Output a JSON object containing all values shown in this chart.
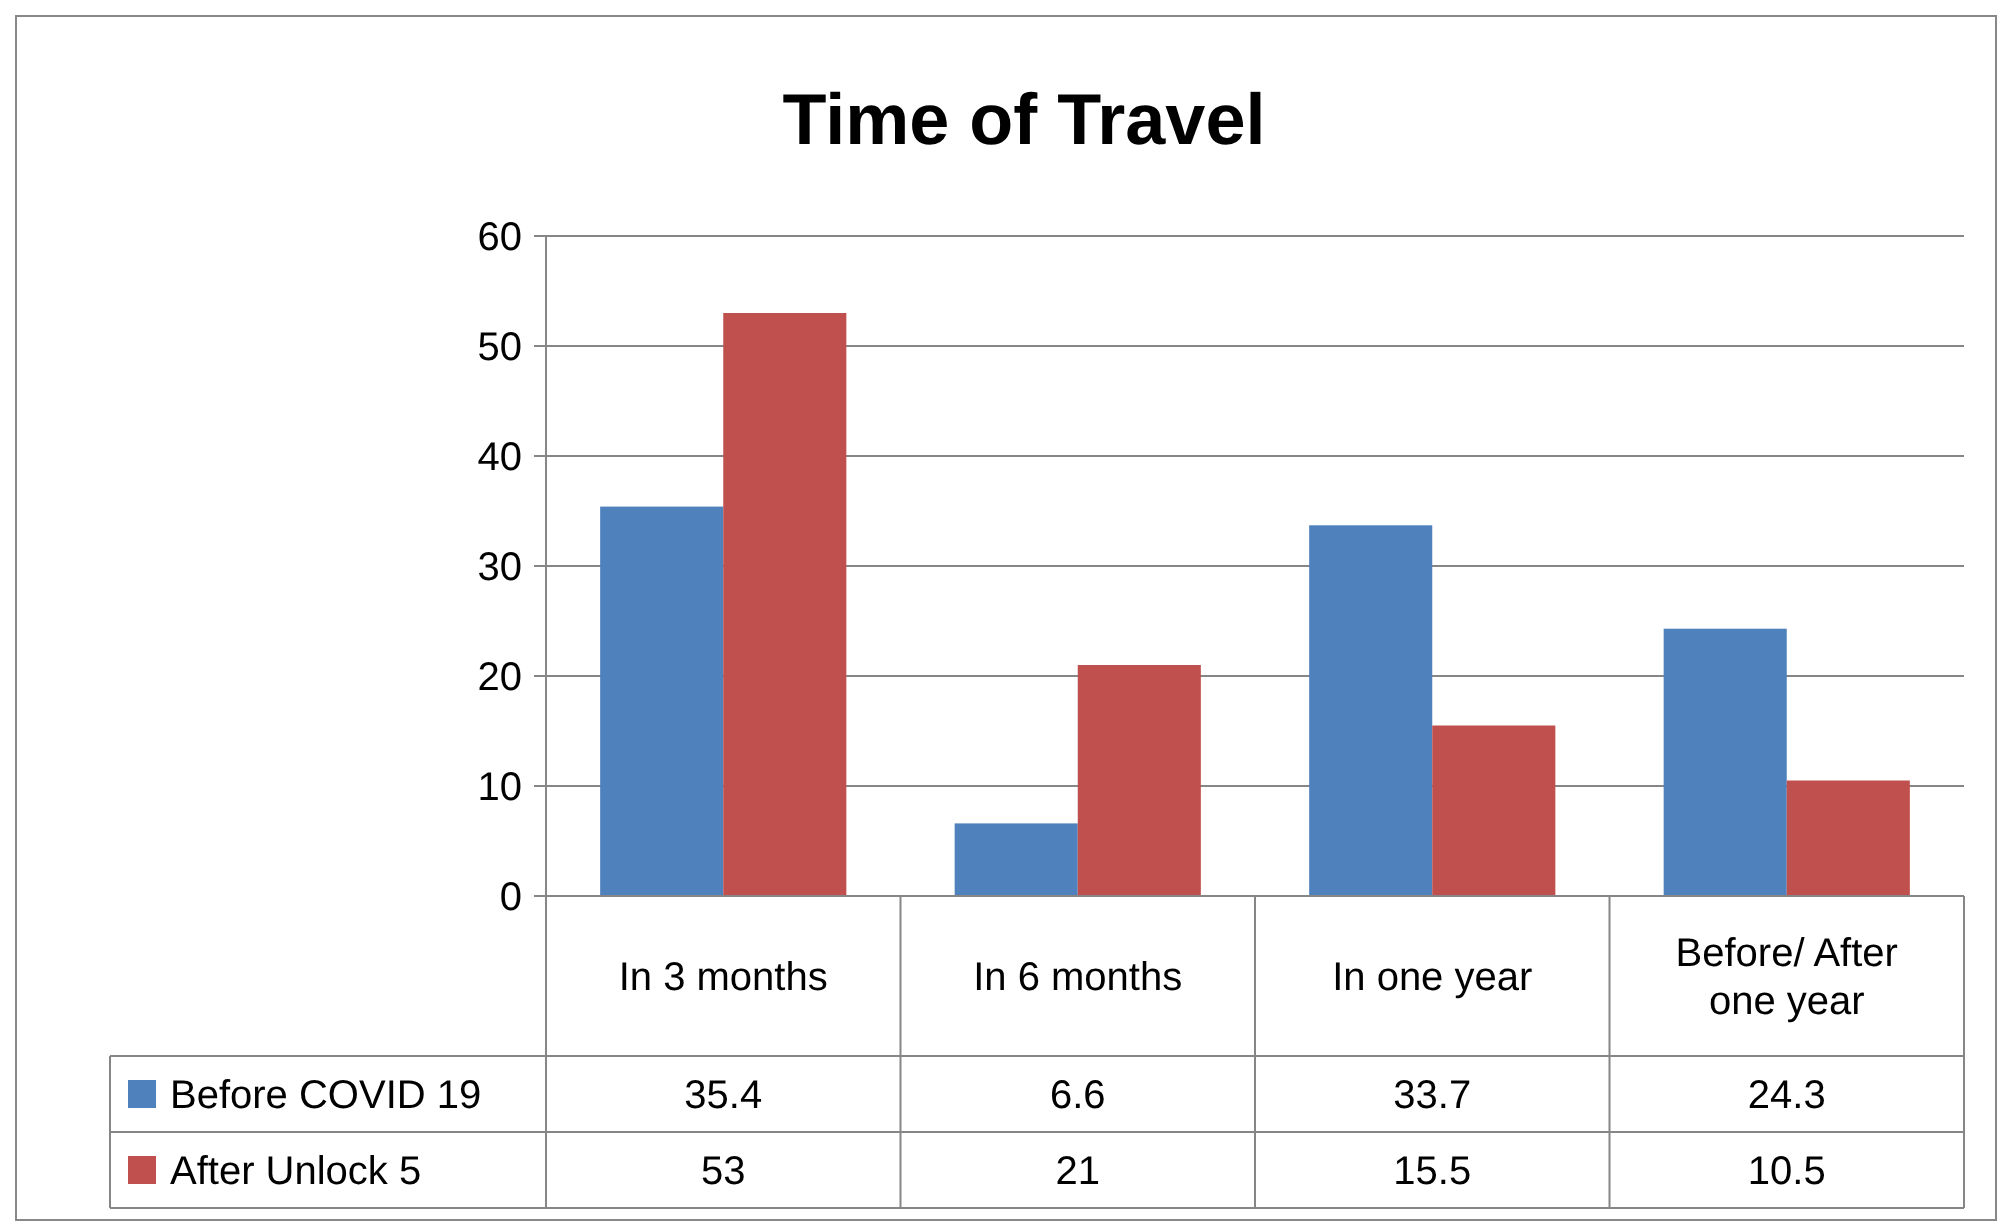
{
  "chart_data": {
    "type": "bar",
    "title": "Time of Travel",
    "categories": [
      "In 3 months",
      "In 6 months",
      "In one year",
      "Before/ After one year"
    ],
    "series": [
      {
        "name": "Before COVID 19",
        "color": "#4f81bd",
        "values": [
          35.4,
          6.6,
          33.7,
          24.3
        ]
      },
      {
        "name": "After Unlock 5",
        "color": "#c0504d",
        "values": [
          53,
          21,
          15.5,
          10.5
        ]
      }
    ],
    "ylim": [
      0,
      60
    ],
    "yticks": [
      0,
      10,
      20,
      30,
      40,
      50,
      60
    ],
    "grid": "y",
    "data_labels": true,
    "legend": "bottom left"
  }
}
